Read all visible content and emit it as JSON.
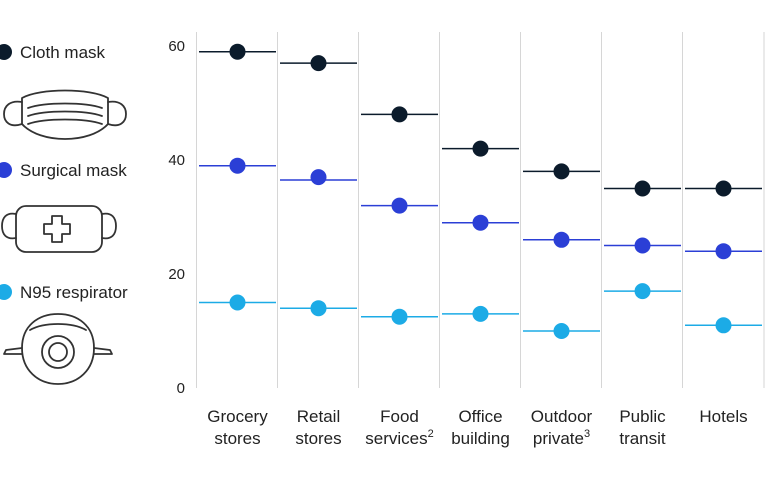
{
  "legend": {
    "cloth": {
      "label": "Cloth mask",
      "icon": "cloth-mask-icon"
    },
    "surgical": {
      "label": "Surgical mask",
      "icon": "surgical-mask-icon"
    },
    "n95": {
      "label": "N95 respirator",
      "icon": "n95-respirator-icon"
    }
  },
  "chart_data": {
    "type": "scatter",
    "title": "",
    "xlabel": "",
    "ylabel": "",
    "ylim": [
      0,
      60
    ],
    "yticks": [
      0,
      20,
      40,
      60
    ],
    "grid": false,
    "legend_position": "left",
    "categories": [
      {
        "line1": "Grocery",
        "line2": "stores",
        "sup": ""
      },
      {
        "line1": "Retail",
        "line2": "stores",
        "sup": ""
      },
      {
        "line1": "Food",
        "line2": "services",
        "sup": "2"
      },
      {
        "line1": "Office",
        "line2": "building",
        "sup": ""
      },
      {
        "line1": "Outdoor",
        "line2": "private",
        "sup": "3"
      },
      {
        "line1": "Public",
        "line2": "transit",
        "sup": ""
      },
      {
        "line1": "Hotels",
        "line2": "",
        "sup": ""
      }
    ],
    "series": [
      {
        "name": "Cloth mask",
        "key": "cloth",
        "color": "#0b1b2b",
        "dot_values": [
          59,
          57,
          48,
          42,
          38,
          35,
          35
        ],
        "line_values": [
          59,
          57,
          48,
          42,
          38,
          35,
          35
        ]
      },
      {
        "name": "Surgical mask",
        "key": "surgical",
        "color": "#2b3fd6",
        "dot_values": [
          39,
          37,
          32,
          29,
          26,
          25,
          24
        ],
        "line_values": [
          39,
          36.5,
          32,
          29,
          26,
          25,
          24
        ]
      },
      {
        "name": "N95 respirator",
        "key": "n95",
        "color": "#1cabe6",
        "dot_values": [
          15,
          14,
          12.5,
          13,
          10,
          17,
          11
        ],
        "line_values": [
          15,
          14,
          12.5,
          13,
          10,
          17,
          11
        ]
      }
    ]
  }
}
